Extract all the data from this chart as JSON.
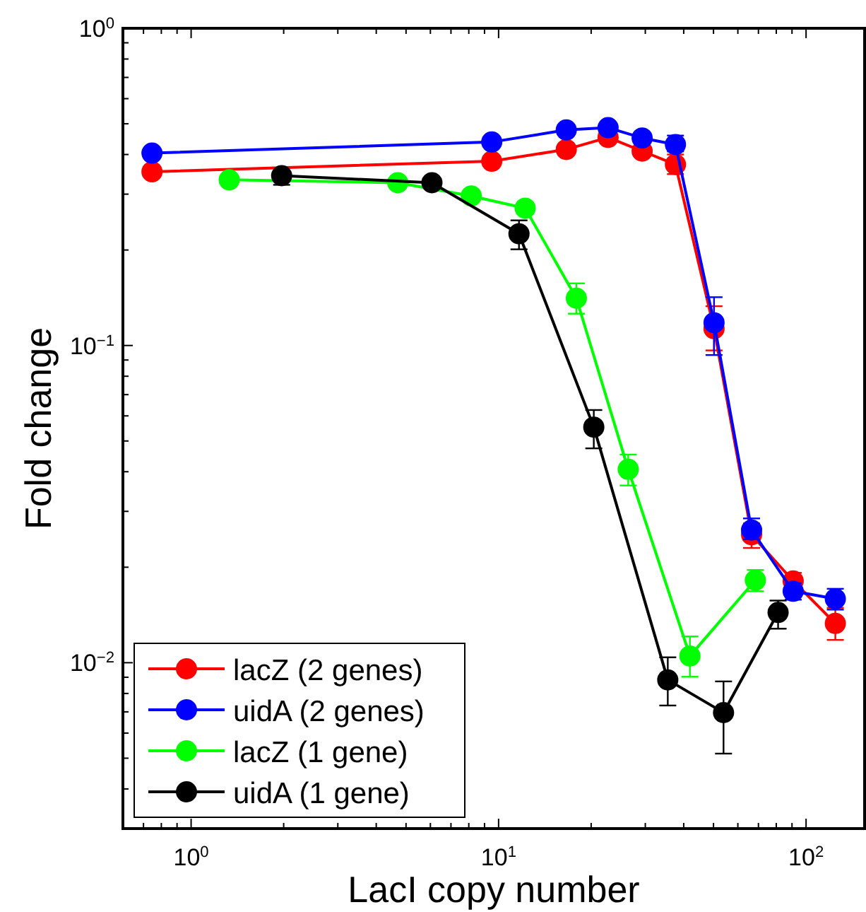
{
  "chart_data": {
    "type": "line",
    "xlabel": "LacI copy number",
    "ylabel": "Fold change",
    "log": "xy",
    "marker": "circle",
    "line_style": "solid",
    "grid": false,
    "legend": "bottom left",
    "xlim": [
      0.6,
      155
    ],
    "ylim": [
      0.003,
      1
    ],
    "xticks": [
      {
        "value": 0.6,
        "label": null
      },
      {
        "value": 0.7,
        "label": null
      },
      {
        "value": 0.8,
        "label": null
      },
      {
        "value": 0.9,
        "label": null
      },
      {
        "value": 1,
        "label": "10$^{0}$"
      },
      {
        "value": 2,
        "label": null
      },
      {
        "value": 3,
        "label": null
      },
      {
        "value": 4,
        "label": null
      },
      {
        "value": 5,
        "label": null
      },
      {
        "value": 6,
        "label": null
      },
      {
        "value": 7,
        "label": null
      },
      {
        "value": 8,
        "label": null
      },
      {
        "value": 9,
        "label": null
      },
      {
        "value": 10,
        "label": "10$^{1}$"
      },
      {
        "value": 20,
        "label": null
      },
      {
        "value": 30,
        "label": null
      },
      {
        "value": 40,
        "label": null
      },
      {
        "value": 50,
        "label": null
      },
      {
        "value": 60,
        "label": null
      },
      {
        "value": 70,
        "label": null
      },
      {
        "value": 80,
        "label": null
      },
      {
        "value": 90,
        "label": null
      },
      {
        "value": 100,
        "label": "10$^{2}$"
      }
    ],
    "yticks": [
      {
        "value": 0.003,
        "label": null
      },
      {
        "value": 0.004,
        "label": null
      },
      {
        "value": 0.005,
        "label": null
      },
      {
        "value": 0.006,
        "label": null
      },
      {
        "value": 0.007,
        "label": null
      },
      {
        "value": 0.008,
        "label": null
      },
      {
        "value": 0.009,
        "label": null
      },
      {
        "value": 0.01,
        "label": "10$^{−2}$"
      },
      {
        "value": 0.02,
        "label": null
      },
      {
        "value": 0.03,
        "label": null
      },
      {
        "value": 0.04,
        "label": null
      },
      {
        "value": 0.05,
        "label": null
      },
      {
        "value": 0.06,
        "label": null
      },
      {
        "value": 0.07,
        "label": null
      },
      {
        "value": 0.08,
        "label": null
      },
      {
        "value": 0.09,
        "label": null
      },
      {
        "value": 0.1,
        "label": "10$^{−1}$"
      },
      {
        "value": 0.2,
        "label": null
      },
      {
        "value": 0.3,
        "label": null
      },
      {
        "value": 0.4,
        "label": null
      },
      {
        "value": 0.5,
        "label": null
      },
      {
        "value": 0.6,
        "label": null
      },
      {
        "value": 0.7,
        "label": null
      },
      {
        "value": 0.8,
        "label": null
      },
      {
        "value": 0.9,
        "label": null
      },
      {
        "value": 1,
        "label": "10$^{0}$"
      }
    ],
    "series": [
      {
        "name": "lacZ (2 genes)",
        "color": "#ff0000",
        "x": [
          0.746,
          9.5,
          16.6,
          22.7,
          29.3,
          37.6,
          50.2,
          66.5,
          90.8,
          124.5
        ],
        "values": [
          0.353,
          0.381,
          0.415,
          0.453,
          0.41,
          0.372,
          0.113,
          0.0253,
          0.0181,
          0.0133
        ],
        "errors": [
          null,
          null,
          null,
          null,
          null,
          [
            0.347,
            0.4
          ],
          [
            0.0965,
            0.133
          ],
          [
            0.023,
            0.0275
          ],
          [
            0.0181,
            0.0192
          ],
          [
            0.0118,
            0.0149
          ]
        ]
      },
      {
        "name": "uidA (2 genes)",
        "color": "#0000ff",
        "x": [
          0.746,
          9.5,
          16.6,
          22.7,
          29.3,
          37.6,
          50.2,
          66.5,
          90.8,
          124.5
        ],
        "values": [
          0.404,
          0.438,
          0.478,
          0.486,
          0.451,
          0.43,
          0.118,
          0.0262,
          0.0168,
          0.0159
        ],
        "errors": [
          null,
          null,
          null,
          null,
          null,
          [
            0.409,
            0.459
          ],
          [
            0.0933,
            0.142
          ],
          [
            0.0245,
            0.0285
          ],
          [
            0.0158,
            0.0178
          ],
          [
            0.0147,
            0.0171
          ]
        ]
      },
      {
        "name": "lacZ (1 gene)",
        "color": "#00ff00",
        "x": [
          1.33,
          4.7,
          8.15,
          12.2,
          17.9,
          26.4,
          41.9,
          68.4
        ],
        "values": [
          0.333,
          0.326,
          0.296,
          0.271,
          0.141,
          0.0407,
          0.0105,
          0.0182
        ],
        "errors": [
          null,
          null,
          null,
          null,
          [
            0.126,
            0.157
          ],
          [
            0.0362,
            0.0453
          ],
          [
            0.00903,
            0.0121
          ],
          [
            0.0168,
            0.0196
          ]
        ]
      },
      {
        "name": "uidA (1 gene)",
        "color": "#000000",
        "x": [
          1.97,
          6.07,
          11.65,
          20.4,
          35.5,
          53.9,
          81.1
        ],
        "values": [
          0.343,
          0.326,
          0.225,
          0.0553,
          0.00883,
          0.00696,
          0.0144
        ],
        "errors": [
          [
            0.321,
            0.343
          ],
          null,
          [
            0.201,
            0.248
          ],
          [
            0.0474,
            0.0626
          ],
          [
            0.00733,
            0.0104
          ],
          [
            0.00517,
            0.00873
          ],
          [
            0.0128,
            0.0157
          ]
        ]
      }
    ]
  }
}
